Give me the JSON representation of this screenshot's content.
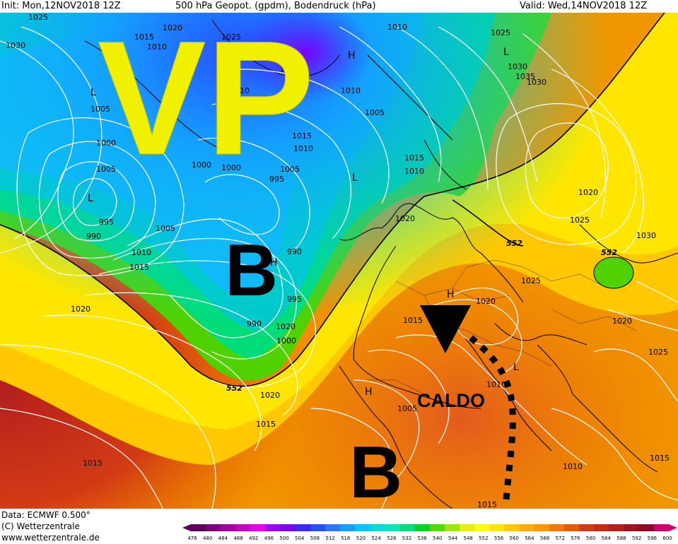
{
  "header": {
    "init": "Init: Mon,12NOV2018 12Z",
    "title": "500 hPa Geopot. (gpdm), Bodendruck (hPa)",
    "valid": "Valid: Wed,14NOV2018 12Z"
  },
  "footer": {
    "data_source": "Data: ECMWF  0.500°",
    "copyright": "(C) Wetterzentrale",
    "website": "www.wetterzentrale.de"
  },
  "overlay": {
    "vp_label": "VP",
    "low_north_label": "B",
    "low_south_label": "B",
    "warm_label": "CALDO"
  },
  "map_labels": {
    "isobars": [
      "1025",
      "1030",
      "1020",
      "1015",
      "1010",
      "1005",
      "1000",
      "995",
      "990",
      "1015",
      "1010",
      "1005",
      "1000",
      "995",
      "990",
      "1015",
      "1010",
      "1005",
      "1015",
      "1010",
      "1005",
      "1000",
      "1005",
      "1010",
      "1015",
      "1020",
      "1025",
      "1030",
      "1035",
      "1030",
      "1020",
      "1025",
      "1030",
      "1025",
      "1020",
      "1015",
      "1010",
      "1005",
      "1010",
      "1015",
      "1020",
      "1025",
      "1020",
      "1015",
      "1015",
      "1020",
      "1015",
      "1025",
      "1010",
      "1015",
      "1020",
      "995",
      "990",
      "1000",
      "1005",
      "1010"
    ],
    "geopotential_552": [
      "552",
      "552",
      "552"
    ],
    "pressure_centers": [
      "H",
      "H",
      "H",
      "H",
      "L",
      "L",
      "L",
      "L",
      "L"
    ]
  },
  "colorbar": {
    "ticks": [
      "476",
      "480",
      "484",
      "488",
      "492",
      "496",
      "500",
      "504",
      "508",
      "512",
      "516",
      "520",
      "524",
      "528",
      "532",
      "536",
      "540",
      "544",
      "548",
      "552",
      "556",
      "560",
      "564",
      "568",
      "572",
      "576",
      "580",
      "584",
      "588",
      "592",
      "596",
      "600"
    ],
    "colors": [
      "#5a005a",
      "#7d007d",
      "#a0009c",
      "#c800c4",
      "#e600e6",
      "#a000ff",
      "#7a00ff",
      "#3c28ff",
      "#2850ff",
      "#2878ff",
      "#14a0ff",
      "#00c8ff",
      "#00dcdc",
      "#00e6b4",
      "#00dc78",
      "#00d228",
      "#50dc00",
      "#a0e600",
      "#e6f000",
      "#ffff00",
      "#ffe600",
      "#ffc800",
      "#ffaa00",
      "#ff9600",
      "#f07800",
      "#e65a00",
      "#d23c14",
      "#c82814",
      "#b41e1e",
      "#a01428",
      "#8c0a28",
      "#d2006e"
    ]
  }
}
